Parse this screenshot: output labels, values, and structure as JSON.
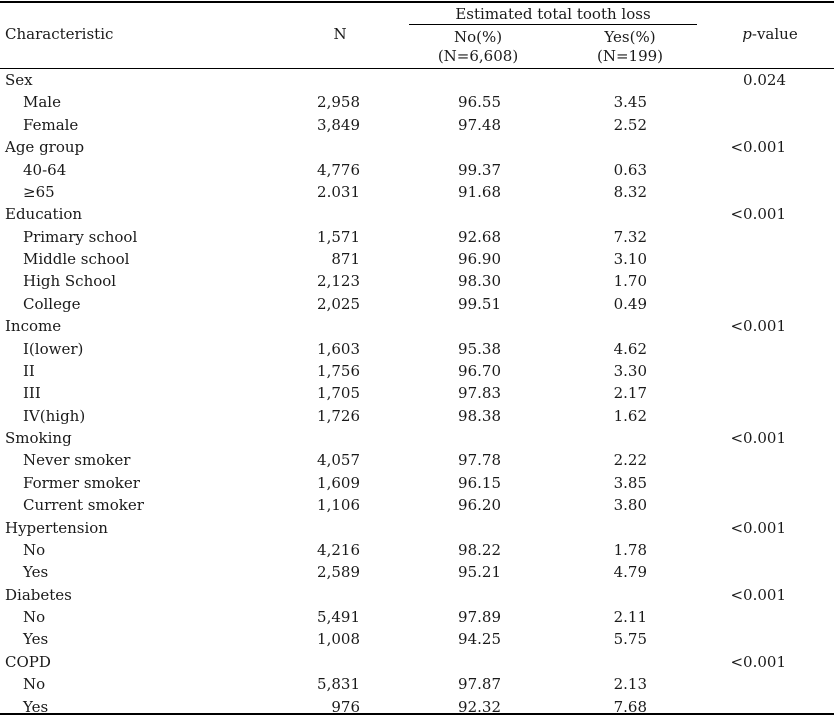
{
  "header": {
    "characteristic": "Characteristic",
    "n": "N",
    "span": "Estimated total tooth loss",
    "no_line1": "No(%)",
    "no_line2": "(N=6,608)",
    "yes_line1": "Yes(%)",
    "yes_line2": "(N=199)",
    "p_italic": "p",
    "p_rest": "-value"
  },
  "rows": [
    {
      "label": "Sex",
      "type": "group",
      "n": "",
      "no": "",
      "yes": "",
      "p": "0.024"
    },
    {
      "label": "Male",
      "type": "sub",
      "n": "2,958",
      "no": "96.55",
      "yes": "3.45",
      "p": ""
    },
    {
      "label": "Female",
      "type": "sub",
      "n": "3,849",
      "no": "97.48",
      "yes": "2.52",
      "p": ""
    },
    {
      "label": "Age group",
      "type": "group",
      "n": "",
      "no": "",
      "yes": "",
      "p": "<0.001"
    },
    {
      "label": "40-64",
      "type": "sub",
      "n": "4,776",
      "no": "99.37",
      "yes": "0.63",
      "p": ""
    },
    {
      "label": "≥65",
      "type": "sub",
      "n": "2.031",
      "no": "91.68",
      "yes": "8.32",
      "p": ""
    },
    {
      "label": "Education",
      "type": "group",
      "n": "",
      "no": "",
      "yes": "",
      "p": "<0.001"
    },
    {
      "label": "Primary school",
      "type": "sub",
      "n": "1,571",
      "no": "92.68",
      "yes": "7.32",
      "p": ""
    },
    {
      "label": "Middle school",
      "type": "sub",
      "n": "871",
      "no": "96.90",
      "yes": "3.10",
      "p": ""
    },
    {
      "label": "High School",
      "type": "sub",
      "n": "2,123",
      "no": "98.30",
      "yes": "1.70",
      "p": ""
    },
    {
      "label": "College",
      "type": "sub",
      "n": "2,025",
      "no": "99.51",
      "yes": "0.49",
      "p": ""
    },
    {
      "label": "Income",
      "type": "group",
      "n": "",
      "no": "",
      "yes": "",
      "p": "<0.001"
    },
    {
      "label": "I(lower)",
      "type": "sub",
      "n": "1,603",
      "no": "95.38",
      "yes": "4.62",
      "p": ""
    },
    {
      "label": "II",
      "type": "sub",
      "n": "1,756",
      "no": "96.70",
      "yes": "3.30",
      "p": ""
    },
    {
      "label": "III",
      "type": "sub",
      "n": "1,705",
      "no": "97.83",
      "yes": "2.17",
      "p": ""
    },
    {
      "label": "IV(high)",
      "type": "sub",
      "n": "1,726",
      "no": "98.38",
      "yes": "1.62",
      "p": ""
    },
    {
      "label": "Smoking",
      "type": "group",
      "n": "",
      "no": "",
      "yes": "",
      "p": "<0.001"
    },
    {
      "label": "Never smoker",
      "type": "sub",
      "n": "4,057",
      "no": "97.78",
      "yes": "2.22",
      "p": ""
    },
    {
      "label": "Former smoker",
      "type": "sub",
      "n": "1,609",
      "no": "96.15",
      "yes": "3.85",
      "p": ""
    },
    {
      "label": "Current smoker",
      "type": "sub",
      "n": "1,106",
      "no": "96.20",
      "yes": "3.80",
      "p": ""
    },
    {
      "label": "Hypertension",
      "type": "group",
      "n": "",
      "no": "",
      "yes": "",
      "p": "<0.001"
    },
    {
      "label": "No",
      "type": "sub",
      "n": "4,216",
      "no": "98.22",
      "yes": "1.78",
      "p": ""
    },
    {
      "label": "Yes",
      "type": "sub",
      "n": "2,589",
      "no": "95.21",
      "yes": "4.79",
      "p": ""
    },
    {
      "label": "Diabetes",
      "type": "group",
      "n": "",
      "no": "",
      "yes": "",
      "p": "<0.001"
    },
    {
      "label": "No",
      "type": "sub",
      "n": "5,491",
      "no": "97.89",
      "yes": "2.11",
      "p": ""
    },
    {
      "label": "Yes",
      "type": "sub",
      "n": "1,008",
      "no": "94.25",
      "yes": "5.75",
      "p": ""
    },
    {
      "label": "COPD",
      "type": "group",
      "n": "",
      "no": "",
      "yes": "",
      "p": "<0.001"
    },
    {
      "label": "No",
      "type": "sub",
      "n": "5,831",
      "no": "97.87",
      "yes": "2.13",
      "p": ""
    },
    {
      "label": "Yes",
      "type": "sub",
      "n": "976",
      "no": "92.32",
      "yes": "7.68",
      "p": ""
    }
  ]
}
